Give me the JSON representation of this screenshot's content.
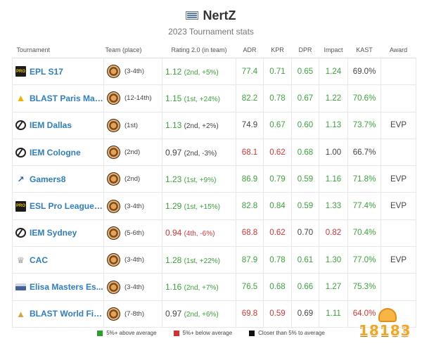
{
  "header": {
    "player_name": "NertZ",
    "subtitle": "2023 Tournament stats",
    "flag": "israel-flag-icon"
  },
  "columns": {
    "tournament": "Tournament",
    "team": "Team (place)",
    "rating": "Rating 2.0 (in team)",
    "adr": "ADR",
    "kpr": "KPR",
    "dpr": "DPR",
    "impact": "Impact",
    "kast": "KAST",
    "award": "Award"
  },
  "colors": {
    "above": "#3aa33a",
    "below": "#d63434",
    "close": "#444444",
    "tournament_link": "#2f7ec1"
  },
  "rows": [
    {
      "tournament": "EPL S17",
      "logo": "epl-logo-icon",
      "place": "(3-4th)",
      "rating": "1.12",
      "rating_meta": "(2nd, +5%)",
      "rating_c": "green",
      "meta_c": "green",
      "adr": "77.4",
      "adr_c": "green",
      "kpr": "0.71",
      "kpr_c": "green",
      "dpr": "0.65",
      "dpr_c": "green",
      "impact": "1.24",
      "impact_c": "green",
      "kast": "69.0%",
      "kast_c": "black",
      "award": ""
    },
    {
      "tournament": "BLAST Paris Major",
      "logo": "blast-logo-icon",
      "place": "(12-14th)",
      "rating": "1.15",
      "rating_meta": "(1st, +24%)",
      "rating_c": "green",
      "meta_c": "green",
      "adr": "82.2",
      "adr_c": "green",
      "kpr": "0.78",
      "kpr_c": "green",
      "dpr": "0.67",
      "dpr_c": "green",
      "impact": "1.22",
      "impact_c": "green",
      "kast": "70.6%",
      "kast_c": "green",
      "award": ""
    },
    {
      "tournament": "IEM Dallas",
      "logo": "iem-logo-icon",
      "place": "(1st)",
      "rating": "1.13",
      "rating_meta": "(2nd, +2%)",
      "rating_c": "green",
      "meta_c": "black",
      "adr": "74.9",
      "adr_c": "black",
      "kpr": "0.67",
      "kpr_c": "green",
      "dpr": "0.60",
      "dpr_c": "green",
      "impact": "1.13",
      "impact_c": "green",
      "kast": "73.7%",
      "kast_c": "green",
      "award": "EVP"
    },
    {
      "tournament": "IEM Cologne",
      "logo": "iem-logo-icon",
      "place": "(2nd)",
      "rating": "0.97",
      "rating_meta": "(2nd, -3%)",
      "rating_c": "black",
      "meta_c": "black",
      "adr": "68.1",
      "adr_c": "red",
      "kpr": "0.62",
      "kpr_c": "red",
      "dpr": "0.68",
      "dpr_c": "green",
      "impact": "1.00",
      "impact_c": "black",
      "kast": "66.7%",
      "kast_c": "black",
      "award": ""
    },
    {
      "tournament": "Gamers8",
      "logo": "gamers8-logo-icon",
      "place": "(2nd)",
      "rating": "1.23",
      "rating_meta": "(1st, +9%)",
      "rating_c": "green",
      "meta_c": "green",
      "adr": "86.9",
      "adr_c": "green",
      "kpr": "0.79",
      "kpr_c": "green",
      "dpr": "0.59",
      "dpr_c": "green",
      "impact": "1.16",
      "impact_c": "green",
      "kast": "71.8%",
      "kast_c": "green",
      "award": "EVP"
    },
    {
      "tournament": "ESL Pro League S...",
      "logo": "epl-logo-icon",
      "place": "(3-4th)",
      "rating": "1.29",
      "rating_meta": "(1st, +15%)",
      "rating_c": "green",
      "meta_c": "green",
      "adr": "82.8",
      "adr_c": "green",
      "kpr": "0.84",
      "kpr_c": "green",
      "dpr": "0.59",
      "dpr_c": "green",
      "impact": "1.33",
      "impact_c": "green",
      "kast": "77.4%",
      "kast_c": "green",
      "award": "EVP"
    },
    {
      "tournament": "IEM Sydney",
      "logo": "iem-logo-icon",
      "place": "(5-6th)",
      "rating": "0.94",
      "rating_meta": "(4th, -6%)",
      "rating_c": "red",
      "meta_c": "red",
      "adr": "68.8",
      "adr_c": "red",
      "kpr": "0.62",
      "kpr_c": "red",
      "dpr": "0.70",
      "dpr_c": "black",
      "impact": "0.82",
      "impact_c": "red",
      "kast": "70.4%",
      "kast_c": "green",
      "award": ""
    },
    {
      "tournament": "CAC",
      "logo": "cac-logo-icon",
      "place": "(3-4th)",
      "rating": "1.28",
      "rating_meta": "(1st, +22%)",
      "rating_c": "green",
      "meta_c": "green",
      "adr": "87.9",
      "adr_c": "green",
      "kpr": "0.78",
      "kpr_c": "green",
      "dpr": "0.61",
      "dpr_c": "green",
      "impact": "1.30",
      "impact_c": "green",
      "kast": "77.0%",
      "kast_c": "green",
      "award": "EVP"
    },
    {
      "tournament": "Elisa Masters Es...",
      "logo": "elisa-logo-icon",
      "place": "(3-4th)",
      "rating": "1.16",
      "rating_meta": "(2nd, +7%)",
      "rating_c": "green",
      "meta_c": "green",
      "adr": "76.5",
      "adr_c": "green",
      "kpr": "0.68",
      "kpr_c": "green",
      "dpr": "0.66",
      "dpr_c": "green",
      "impact": "1.27",
      "impact_c": "green",
      "kast": "75.3%",
      "kast_c": "green",
      "award": ""
    },
    {
      "tournament": "BLAST World Final",
      "logo": "blast-world-final-logo-icon",
      "place": "(7-8th)",
      "rating": "0.97",
      "rating_meta": "(2nd, +6%)",
      "rating_c": "black",
      "meta_c": "green",
      "adr": "69.8",
      "adr_c": "red",
      "kpr": "0.59",
      "kpr_c": "red",
      "dpr": "0.69",
      "dpr_c": "black",
      "impact": "1.11",
      "impact_c": "green",
      "kast": "64.0%",
      "kast_c": "red",
      "award": ""
    }
  ],
  "legend": {
    "above": "5%+ above average",
    "below": "5%+ below average",
    "close": "Closer than 5% to average"
  },
  "watermark": {
    "text": "18183",
    "icon": "mascot-logo-icon"
  }
}
